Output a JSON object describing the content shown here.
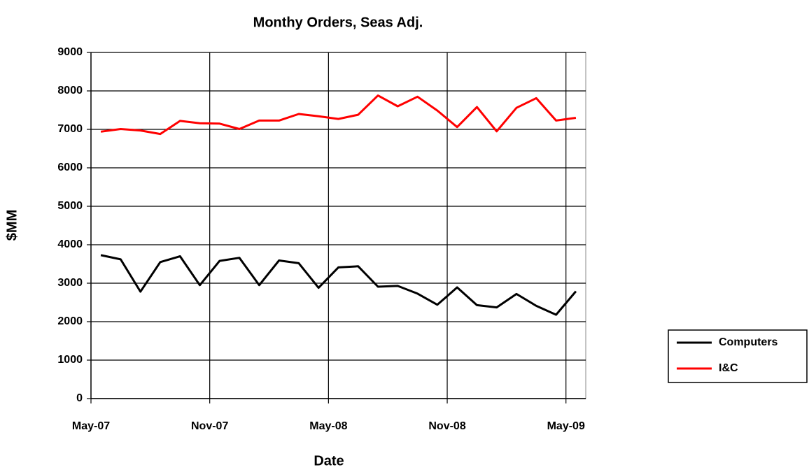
{
  "chart_data": {
    "type": "line",
    "title": "Monthy Orders, Seas Adj.",
    "x_label": "Date",
    "y_label": "$MM",
    "categories": [
      "May-07",
      null,
      null,
      null,
      null,
      null,
      "Nov-07",
      null,
      null,
      null,
      null,
      null,
      "May-08",
      null,
      null,
      null,
      null,
      null,
      "Nov-08",
      null,
      null,
      null,
      null,
      null,
      "May-09"
    ],
    "series": [
      {
        "name": "Computers",
        "color": "#000000",
        "values": [
          3730,
          3620,
          2780,
          3550,
          3700,
          2950,
          3580,
          3660,
          2950,
          3590,
          3520,
          2880,
          3410,
          3440,
          2910,
          2930,
          2730,
          2440,
          2890,
          2430,
          2370,
          2720,
          2410,
          2180,
          2790
        ]
      },
      {
        "name": "I&C",
        "color": "#ff0000",
        "values": [
          6940,
          7010,
          6970,
          6880,
          7220,
          7160,
          7150,
          7010,
          7230,
          7230,
          7400,
          7340,
          7270,
          7380,
          7880,
          7600,
          7850,
          7490,
          7060,
          7580,
          6950,
          7560,
          7810,
          7230,
          7300
        ]
      }
    ],
    "ylim": [
      0,
      9000
    ],
    "yticks": [
      0,
      1000,
      2000,
      3000,
      4000,
      5000,
      6000,
      7000,
      8000,
      9000
    ],
    "grid": true,
    "legend": "right"
  }
}
